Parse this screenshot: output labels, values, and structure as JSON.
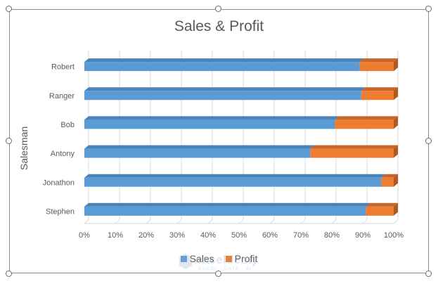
{
  "chart_data": {
    "type": "bar",
    "orientation": "horizontal",
    "stacking": "percent",
    "title": "Sales & Profit",
    "xlabel": "",
    "ylabel": "Salesman",
    "categories": [
      "Robert",
      "Ranger",
      "Bob",
      "Antony",
      "Jonathon",
      "Stephen"
    ],
    "series": [
      {
        "name": "Sales",
        "color": "#5b9bd5",
        "values": [
          89,
          89.5,
          81,
          73,
          96,
          91
        ]
      },
      {
        "name": "Profit",
        "color": "#ed7d31",
        "values": [
          11,
          10.5,
          19,
          27,
          4,
          9
        ]
      }
    ],
    "xlim": [
      0,
      100
    ],
    "x_ticks": [
      "0%",
      "10%",
      "20%",
      "30%",
      "40%",
      "50%",
      "60%",
      "70%",
      "80%",
      "90%",
      "100%"
    ],
    "grid": true,
    "legend_position": "bottom"
  },
  "watermark": {
    "brand": "exceldemy",
    "tagline": "EXCEL · DATA · BI"
  }
}
